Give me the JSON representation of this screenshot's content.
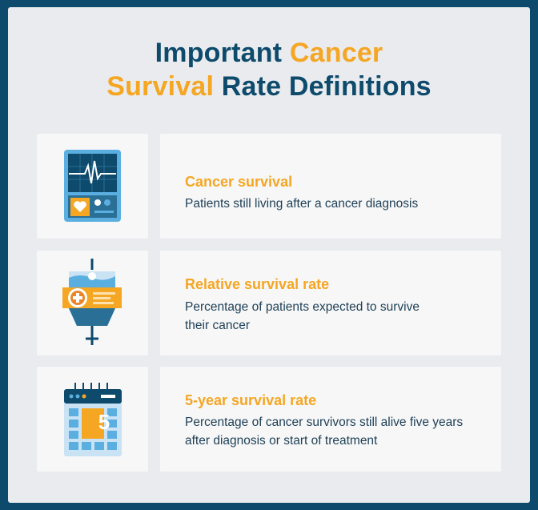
{
  "title": {
    "line1_part1": "Important",
    "line1_part2": "Cancer",
    "line2_part1": "Survival",
    "line2_part2": "Rate Definitions"
  },
  "colors": {
    "navy": "#0d4a6b",
    "orange": "#f5a623",
    "light_blue": "#5aaee0",
    "card_bg": "#e9ebee"
  },
  "items": [
    {
      "icon": "heart-monitor-icon",
      "title": "Cancer survival",
      "description": "Patients still living after a cancer diagnosis"
    },
    {
      "icon": "iv-bag-icon",
      "title": "Relative survival rate",
      "description": "Percentage of patients expected to survive their cancer"
    },
    {
      "icon": "calendar-icon",
      "title": "5-year survival rate",
      "description": "Percentage of cancer survivors still alive five years after diagnosis or start of treatment",
      "calendar_number": "5"
    }
  ]
}
